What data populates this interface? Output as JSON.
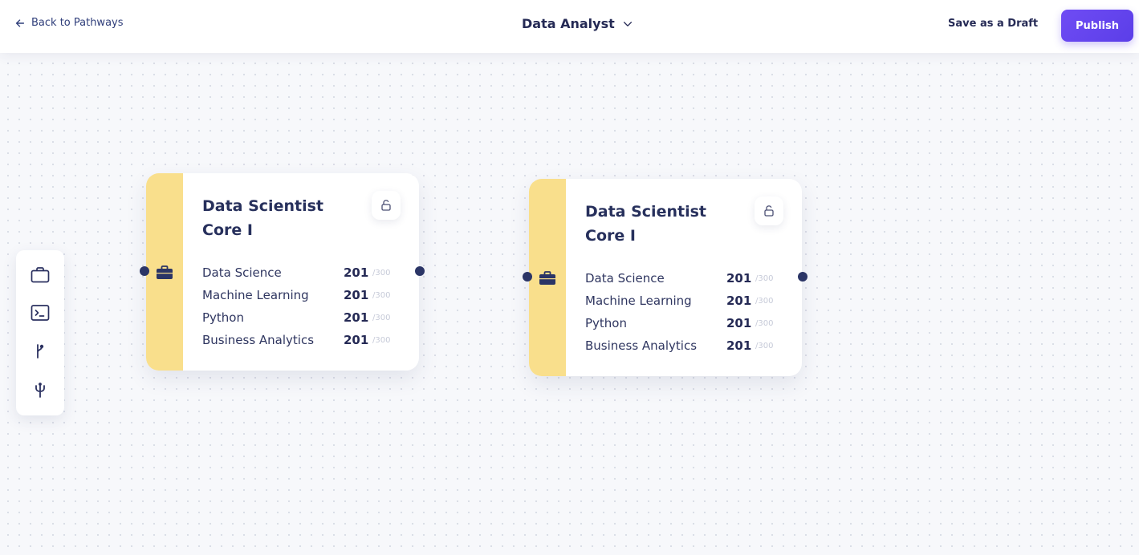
{
  "header": {
    "back_label": "Back to Pathways",
    "title": "Data Analyst",
    "draft_label": "Save as a Draft",
    "publish_label": "Publish"
  },
  "toolbox": {
    "tools": [
      "briefcase-icon",
      "terminal-icon",
      "branch-icon",
      "fork-icon"
    ]
  },
  "nodes": [
    {
      "title": "Data Scientist Core I",
      "skills": [
        {
          "name": "Data Science",
          "score": "201",
          "max": "/300"
        },
        {
          "name": "Machine Learning",
          "score": "201",
          "max": "/300"
        },
        {
          "name": "Python",
          "score": "201",
          "max": "/300"
        },
        {
          "name": "Business Analytics",
          "score": "201",
          "max": "/300"
        }
      ]
    },
    {
      "title": "Data Scientist Core I",
      "skills": [
        {
          "name": "Data Science",
          "score": "201",
          "max": "/300"
        },
        {
          "name": "Machine Learning",
          "score": "201",
          "max": "/300"
        },
        {
          "name": "Python",
          "score": "201",
          "max": "/300"
        },
        {
          "name": "Business Analytics",
          "score": "201",
          "max": "/300"
        }
      ]
    }
  ],
  "colors": {
    "accent": "#6045ee",
    "node_bar": "#f9df8c",
    "port": "#2b3566"
  }
}
